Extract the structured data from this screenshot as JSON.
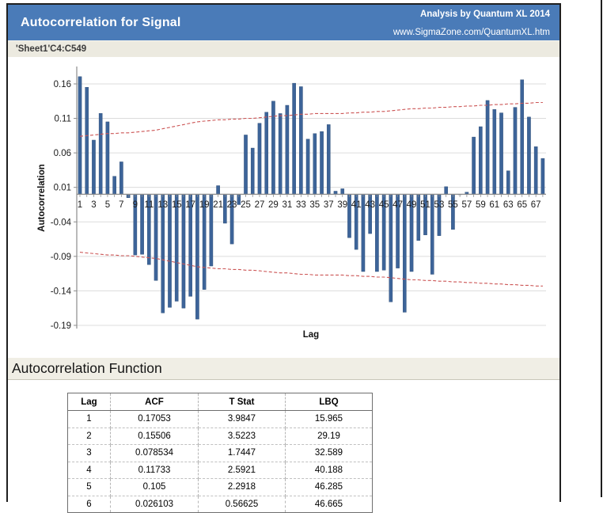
{
  "header": {
    "title": "Autocorrelation for Signal",
    "credit_line1": "Analysis by Quantum XL 2014",
    "credit_line2": "www.SigmaZone.com/QuantumXL.htm"
  },
  "sheet_ref": "'Sheet1'C4:C549",
  "section": {
    "title": "Autocorrelation Function"
  },
  "acf_table": {
    "headers": [
      "Lag",
      "ACF",
      "T Stat",
      "LBQ"
    ],
    "rows": [
      [
        "1",
        "0.17053",
        "3.9847",
        "15.965"
      ],
      [
        "2",
        "0.15506",
        "3.5223",
        "29.19"
      ],
      [
        "3",
        "0.078534",
        "1.7447",
        "32.589"
      ],
      [
        "4",
        "0.11733",
        "2.5921",
        "40.188"
      ],
      [
        "5",
        "0.105",
        "2.2918",
        "46.285"
      ],
      [
        "6",
        "0.026103",
        "0.56625",
        "46.665"
      ]
    ]
  },
  "chart_data": {
    "type": "bar",
    "title": "",
    "xlabel": "Lag",
    "ylabel": "Autocorrelation",
    "x_range": [
      1,
      68
    ],
    "xtick_labels": [
      1,
      3,
      5,
      7,
      9,
      11,
      13,
      15,
      17,
      19,
      21,
      23,
      25,
      27,
      29,
      31,
      33,
      35,
      37,
      39,
      41,
      43,
      45,
      47,
      49,
      51,
      53,
      55,
      57,
      59,
      61,
      63,
      65,
      67
    ],
    "yticks": [
      0.16,
      0.11,
      0.06,
      0.01,
      -0.04,
      -0.09,
      -0.14,
      -0.19
    ],
    "ylim": [
      -0.195,
      0.185
    ],
    "grid": true,
    "legend": "none",
    "series": [
      {
        "name": "ACF",
        "values": [
          0.17053,
          0.15506,
          0.078534,
          0.11733,
          0.105,
          0.0261,
          0.047,
          -0.005,
          -0.088,
          -0.087,
          -0.102,
          -0.125,
          -0.172,
          -0.164,
          -0.155,
          -0.165,
          -0.148,
          -0.181,
          -0.138,
          -0.104,
          0.0125,
          -0.042,
          -0.072,
          -0.015,
          0.086,
          0.067,
          0.103,
          0.119,
          0.135,
          0.117,
          0.129,
          0.161,
          0.156,
          0.08,
          0.088,
          0.091,
          0.101,
          0.0045,
          0.008,
          -0.063,
          -0.08,
          -0.112,
          -0.057,
          -0.112,
          -0.11,
          -0.156,
          -0.107,
          -0.171,
          -0.112,
          -0.067,
          -0.059,
          -0.116,
          -0.06,
          0.011,
          -0.051,
          0.0,
          0.003,
          0.083,
          0.098,
          0.136,
          0.123,
          0.118,
          0.034,
          0.126,
          0.166,
          0.112,
          0.069,
          0.052
        ]
      },
      {
        "name": "Upper confidence limit",
        "values": [
          0.084,
          0.085,
          0.086,
          0.087,
          0.088,
          0.088,
          0.089,
          0.089,
          0.09,
          0.091,
          0.092,
          0.093,
          0.095,
          0.097,
          0.099,
          0.101,
          0.103,
          0.105,
          0.106,
          0.107,
          0.108,
          0.108,
          0.109,
          0.109,
          0.11,
          0.11,
          0.111,
          0.112,
          0.113,
          0.114,
          0.114,
          0.115,
          0.116,
          0.116,
          0.117,
          0.117,
          0.117,
          0.117,
          0.117,
          0.118,
          0.118,
          0.119,
          0.119,
          0.12,
          0.12,
          0.121,
          0.122,
          0.123,
          0.124,
          0.124,
          0.125,
          0.125,
          0.126,
          0.126,
          0.127,
          0.127,
          0.128,
          0.128,
          0.129,
          0.129,
          0.13,
          0.13,
          0.131,
          0.131,
          0.132,
          0.132,
          0.133,
          0.133
        ]
      },
      {
        "name": "Lower confidence limit",
        "values": [
          -0.084,
          -0.085,
          -0.086,
          -0.087,
          -0.088,
          -0.088,
          -0.089,
          -0.089,
          -0.09,
          -0.091,
          -0.092,
          -0.093,
          -0.095,
          -0.097,
          -0.099,
          -0.101,
          -0.103,
          -0.105,
          -0.106,
          -0.107,
          -0.108,
          -0.108,
          -0.109,
          -0.109,
          -0.11,
          -0.11,
          -0.111,
          -0.112,
          -0.113,
          -0.114,
          -0.114,
          -0.115,
          -0.116,
          -0.116,
          -0.117,
          -0.117,
          -0.117,
          -0.117,
          -0.117,
          -0.118,
          -0.118,
          -0.119,
          -0.119,
          -0.12,
          -0.12,
          -0.121,
          -0.122,
          -0.123,
          -0.124,
          -0.124,
          -0.125,
          -0.125,
          -0.126,
          -0.126,
          -0.127,
          -0.127,
          -0.128,
          -0.128,
          -0.129,
          -0.129,
          -0.13,
          -0.13,
          -0.131,
          -0.131,
          -0.132,
          -0.132,
          -0.133,
          -0.133
        ]
      }
    ],
    "colors": {
      "bar": "#3D6499",
      "bar_edge": "#2A4A73",
      "ci_line": "#CC5555",
      "grid": "#DCDCDC",
      "axis": "#8C8C8C",
      "tick_text": "#1a1a1a",
      "header_blue": "#4A7BB8"
    }
  }
}
